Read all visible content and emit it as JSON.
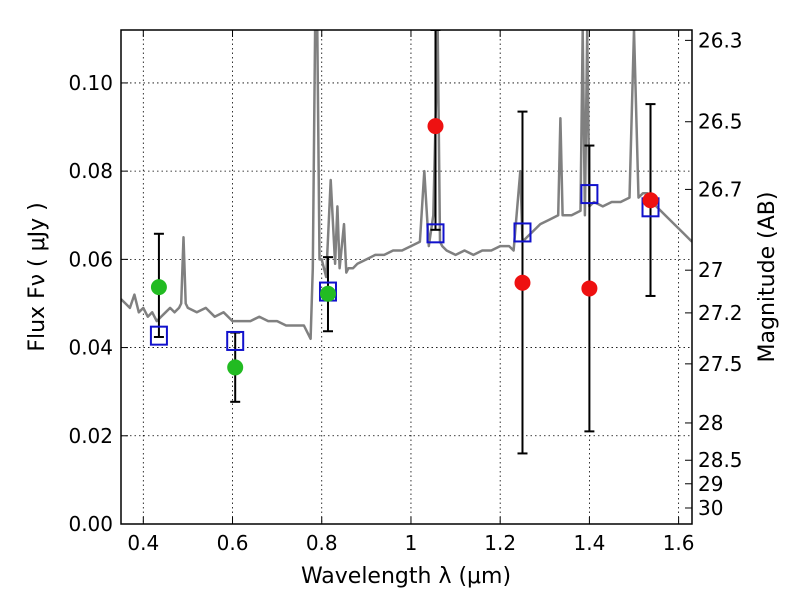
{
  "chart_data": {
    "type": "scatter",
    "xlabel": "Wavelength  λ (μm)",
    "ylabel": "Flux  Fν  ( μJy )",
    "ylabel_right": "Magnitude (AB)",
    "xlim": [
      0.35,
      1.63
    ],
    "ylim": [
      0.0,
      0.112
    ],
    "grid": true,
    "x_ticks": [
      0.4,
      0.6,
      0.8,
      1.0,
      1.2,
      1.4,
      1.6
    ],
    "x_tick_labels": [
      "0.4",
      "0.6",
      "0.8",
      "1",
      "1.2",
      "1.4",
      "1.6"
    ],
    "y_ticks": [
      0.0,
      0.02,
      0.04,
      0.06,
      0.08,
      0.1
    ],
    "y_tick_labels": [
      "0.00",
      "0.02",
      "0.04",
      "0.06",
      "0.08",
      "0.10"
    ],
    "right_axis_ticks": [
      {
        "label": "26.3",
        "mag": 26.3
      },
      {
        "label": "26.5",
        "mag": 26.5
      },
      {
        "label": "26.7",
        "mag": 26.7
      },
      {
        "label": "27",
        "mag": 27.0
      },
      {
        "label": "27.2",
        "mag": 27.2
      },
      {
        "label": "27.5",
        "mag": 27.5
      },
      {
        "label": "28",
        "mag": 28.0
      },
      {
        "label": "28.5",
        "mag": 28.5
      },
      {
        "label": "29",
        "mag": 29.0
      },
      {
        "label": "30",
        "mag": 30.0
      }
    ],
    "series": [
      {
        "marker": "circle",
        "color": "#22bb22",
        "points": [
          {
            "x": 0.435,
            "y": 0.0537,
            "err_lo": 0.0424,
            "err_hi": 0.0658
          },
          {
            "x": 0.606,
            "y": 0.0355,
            "err_lo": 0.0277,
            "err_hi": 0.0434
          },
          {
            "x": 0.814,
            "y": 0.0522,
            "err_lo": 0.0437,
            "err_hi": 0.0605
          }
        ]
      },
      {
        "marker": "circle",
        "color": "#ee1111",
        "points": [
          {
            "x": 1.055,
            "y": 0.0902,
            "err_lo": 0.0667,
            "err_hi": 0.112
          },
          {
            "x": 1.25,
            "y": 0.0547,
            "err_lo": 0.016,
            "err_hi": 0.0935
          },
          {
            "x": 1.4,
            "y": 0.0534,
            "err_lo": 0.021,
            "err_hi": 0.0858
          },
          {
            "x": 1.537,
            "y": 0.0734,
            "err_lo": 0.0517,
            "err_hi": 0.0952
          }
        ]
      },
      {
        "marker": "open-square",
        "color": "#1111cc",
        "points": [
          {
            "x": 0.435,
            "y": 0.0427
          },
          {
            "x": 0.606,
            "y": 0.0415
          },
          {
            "x": 0.814,
            "y": 0.0527
          },
          {
            "x": 1.055,
            "y": 0.0659
          },
          {
            "x": 1.25,
            "y": 0.0661
          },
          {
            "x": 1.4,
            "y": 0.0748
          },
          {
            "x": 1.537,
            "y": 0.0718
          }
        ]
      },
      {
        "marker": "line",
        "color": "#808080",
        "x": [
          0.35,
          0.36,
          0.37,
          0.38,
          0.39,
          0.4,
          0.41,
          0.42,
          0.43,
          0.44,
          0.45,
          0.46,
          0.47,
          0.48,
          0.485,
          0.49,
          0.495,
          0.5,
          0.52,
          0.54,
          0.56,
          0.58,
          0.6,
          0.62,
          0.64,
          0.66,
          0.68,
          0.7,
          0.72,
          0.74,
          0.76,
          0.775,
          0.78,
          0.785,
          0.79,
          0.795,
          0.8,
          0.81,
          0.82,
          0.83,
          0.835,
          0.84,
          0.85,
          0.855,
          0.86,
          0.87,
          0.88,
          0.9,
          0.92,
          0.94,
          0.96,
          0.98,
          1.0,
          1.02,
          1.03,
          1.04,
          1.05,
          1.06,
          1.065,
          1.07,
          1.08,
          1.1,
          1.12,
          1.14,
          1.16,
          1.18,
          1.2,
          1.22,
          1.23,
          1.245,
          1.25,
          1.26,
          1.27,
          1.29,
          1.31,
          1.33,
          1.335,
          1.34,
          1.36,
          1.38,
          1.385,
          1.39,
          1.395,
          1.4,
          1.41,
          1.43,
          1.45,
          1.47,
          1.49,
          1.5,
          1.51,
          1.52,
          1.53,
          1.55,
          1.57,
          1.59,
          1.61,
          1.63
        ],
        "y": [
          0.051,
          0.05,
          0.049,
          0.052,
          0.048,
          0.049,
          0.047,
          0.048,
          0.046,
          0.047,
          0.048,
          0.049,
          0.048,
          0.049,
          0.05,
          0.065,
          0.05,
          0.049,
          0.048,
          0.049,
          0.047,
          0.048,
          0.046,
          0.046,
          0.046,
          0.047,
          0.046,
          0.046,
          0.045,
          0.045,
          0.045,
          0.042,
          0.058,
          0.112,
          0.112,
          0.06,
          0.06,
          0.056,
          0.078,
          0.059,
          0.072,
          0.058,
          0.068,
          0.057,
          0.058,
          0.058,
          0.059,
          0.06,
          0.061,
          0.061,
          0.062,
          0.062,
          0.063,
          0.064,
          0.08,
          0.063,
          0.07,
          0.112,
          0.064,
          0.063,
          0.062,
          0.061,
          0.062,
          0.061,
          0.062,
          0.062,
          0.063,
          0.063,
          0.062,
          0.08,
          0.064,
          0.065,
          0.066,
          0.068,
          0.069,
          0.07,
          0.092,
          0.07,
          0.07,
          0.071,
          0.112,
          0.07,
          0.112,
          0.072,
          0.073,
          0.072,
          0.073,
          0.073,
          0.074,
          0.112,
          0.074,
          0.075,
          0.075,
          0.072,
          0.07,
          0.068,
          0.066,
          0.064
        ]
      }
    ]
  }
}
